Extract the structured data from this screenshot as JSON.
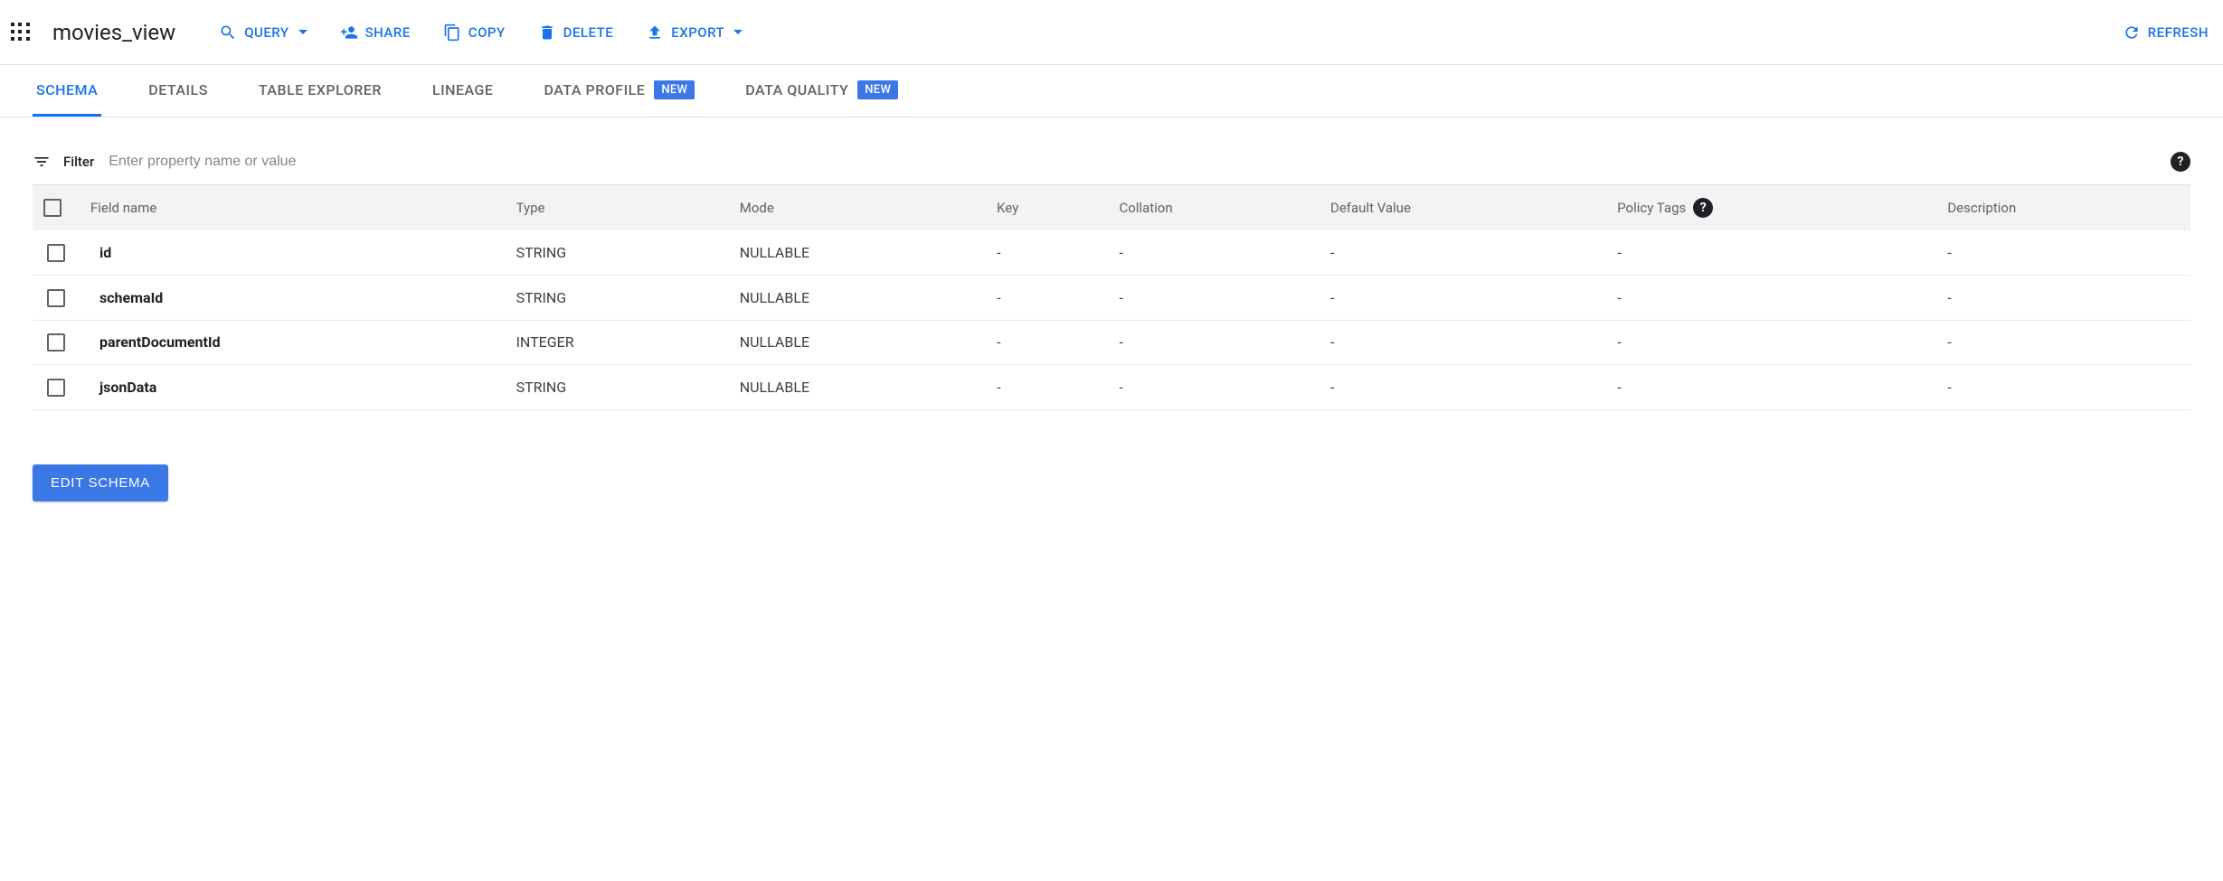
{
  "colors": {
    "accent": "#1a73e8",
    "badge_bg": "#3b78e7",
    "text": "#202124",
    "muted": "#5f6368",
    "border": "#e0e0e0",
    "header_bg": "#f1f3f4"
  },
  "header": {
    "title": "movies_view",
    "actions": {
      "query": "QUERY",
      "share": "SHARE",
      "copy": "COPY",
      "delete": "DELETE",
      "export": "EXPORT",
      "refresh": "REFRESH"
    }
  },
  "tabs": {
    "schema": "SCHEMA",
    "details": "DETAILS",
    "table_explorer": "TABLE EXPLORER",
    "lineage": "LINEAGE",
    "data_profile": "DATA PROFILE",
    "data_quality": "DATA QUALITY",
    "new_badge": "NEW"
  },
  "filter": {
    "label": "Filter",
    "placeholder": "Enter property name or value"
  },
  "table": {
    "columns": {
      "field_name": "Field name",
      "type": "Type",
      "mode": "Mode",
      "key": "Key",
      "collation": "Collation",
      "default_value": "Default Value",
      "policy_tags": "Policy Tags",
      "description": "Description"
    },
    "rows": [
      {
        "field_name": "id",
        "type": "STRING",
        "mode": "NULLABLE",
        "key": "-",
        "collation": "-",
        "default_value": "-",
        "policy_tags": "-",
        "description": "-"
      },
      {
        "field_name": "schemaId",
        "type": "STRING",
        "mode": "NULLABLE",
        "key": "-",
        "collation": "-",
        "default_value": "-",
        "policy_tags": "-",
        "description": "-"
      },
      {
        "field_name": "parentDocumentId",
        "type": "INTEGER",
        "mode": "NULLABLE",
        "key": "-",
        "collation": "-",
        "default_value": "-",
        "policy_tags": "-",
        "description": "-"
      },
      {
        "field_name": "jsonData",
        "type": "STRING",
        "mode": "NULLABLE",
        "key": "-",
        "collation": "-",
        "default_value": "-",
        "policy_tags": "-",
        "description": "-"
      }
    ]
  },
  "buttons": {
    "edit_schema": "EDIT SCHEMA"
  }
}
